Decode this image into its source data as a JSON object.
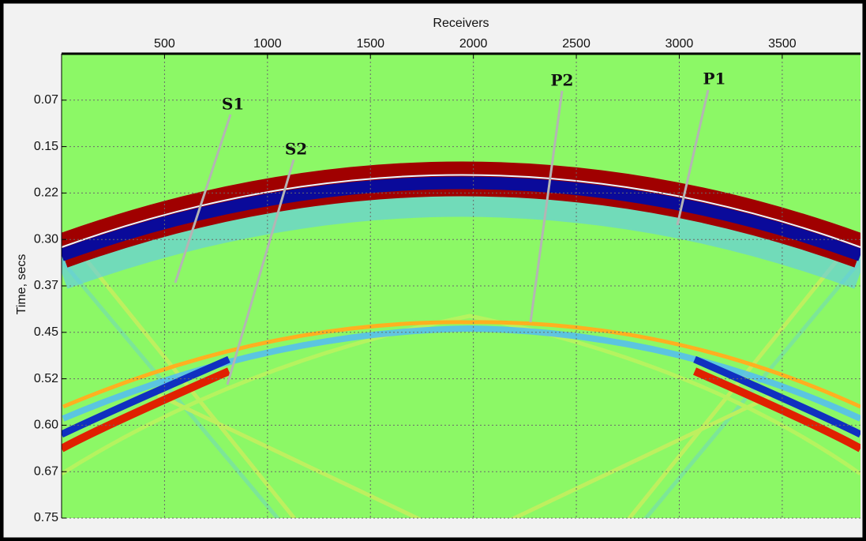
{
  "chart_data": {
    "type": "heatmap",
    "title": "Receivers",
    "y_label": "Time, secs",
    "xlim": [
      0,
      3880
    ],
    "xticks": [
      500,
      1000,
      1500,
      2000,
      2500,
      3000,
      3500
    ],
    "ylim": [
      0,
      0.75
    ],
    "yticks": [
      {
        "value": 0.075,
        "label": "0.07"
      },
      {
        "value": 0.15,
        "label": "0.15"
      },
      {
        "value": 0.225,
        "label": "0.22"
      },
      {
        "value": 0.3,
        "label": "0.30"
      },
      {
        "value": 0.375,
        "label": "0.37"
      },
      {
        "value": 0.45,
        "label": "0.45"
      },
      {
        "value": 0.525,
        "label": "0.52"
      },
      {
        "value": 0.6,
        "label": "0.60"
      },
      {
        "value": 0.675,
        "label": "0.67"
      },
      {
        "value": 0.75,
        "label": "0.75"
      }
    ],
    "grid": true,
    "annotations": [
      "S1",
      "S2",
      "P2",
      "P1"
    ]
  }
}
